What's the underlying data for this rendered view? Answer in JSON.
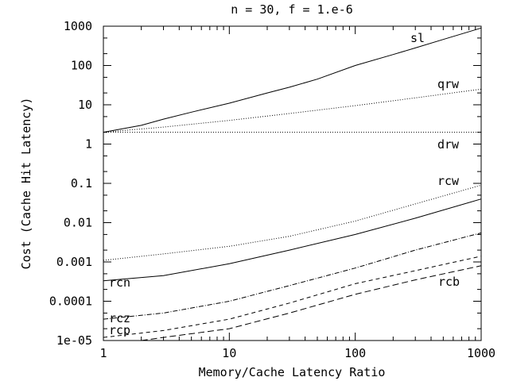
{
  "chart_data": {
    "type": "line",
    "title": "n = 30, f = 1.e-6",
    "xlabel": "Memory/Cache Latency Ratio",
    "ylabel": "Cost (Cache Hit Latency)",
    "xscale": "log",
    "yscale": "log",
    "xlim": [
      1,
      1000
    ],
    "ylim": [
      1e-05,
      1000
    ],
    "grid": false,
    "legend": "inline labels",
    "x_ticks": [
      "1",
      "10",
      "100",
      "1000"
    ],
    "y_ticks": [
      "1e-05",
      "0.0001",
      "0.001",
      "0.01",
      "0.1",
      "1",
      "10",
      "100",
      "1000"
    ],
    "series": [
      {
        "name": "sl",
        "style": "solid",
        "x": [
          1,
          2,
          3,
          5,
          10,
          20,
          30,
          50,
          100,
          200,
          300,
          500,
          1000
        ],
        "y": [
          2,
          3,
          4.3,
          6.5,
          11,
          20,
          28,
          45,
          100,
          190,
          280,
          460,
          900
        ]
      },
      {
        "name": "qrw",
        "style": "dotted",
        "x": [
          1,
          3,
          10,
          30,
          100,
          300,
          1000
        ],
        "y": [
          2,
          2.7,
          4,
          6,
          9.5,
          15,
          25
        ]
      },
      {
        "name": "drw",
        "style": "dotted",
        "x": [
          1,
          1000
        ],
        "y": [
          2,
          2
        ]
      },
      {
        "name": "rcw",
        "style": "dotted",
        "x": [
          1,
          3,
          10,
          30,
          100,
          300,
          1000
        ],
        "y": [
          0.0011,
          0.0016,
          0.0025,
          0.0045,
          0.011,
          0.03,
          0.09
        ]
      },
      {
        "name": "rcn",
        "style": "solid",
        "x": [
          1,
          3,
          10,
          30,
          100,
          300,
          1000
        ],
        "y": [
          0.00033,
          0.00045,
          0.0009,
          0.002,
          0.005,
          0.013,
          0.04
        ]
      },
      {
        "name": "rcz",
        "style": "dashdot",
        "x": [
          1,
          3,
          10,
          30,
          100,
          300,
          1000
        ],
        "y": [
          3.5e-05,
          5e-05,
          0.0001,
          0.00025,
          0.0007,
          0.002,
          0.0055
        ]
      },
      {
        "name": "rcp",
        "style": "dashed",
        "x": [
          1,
          3,
          10,
          30,
          100,
          300,
          1000
        ],
        "y": [
          1.2e-05,
          1.8e-05,
          3.5e-05,
          9e-05,
          0.00028,
          0.0006,
          0.0014
        ]
      },
      {
        "name": "rcb",
        "style": "longdash",
        "x": [
          2,
          3,
          10,
          30,
          100,
          300,
          1000
        ],
        "y": [
          1e-05,
          1.2e-05,
          2e-05,
          5e-05,
          0.00015,
          0.00035,
          0.0008
        ]
      }
    ]
  }
}
